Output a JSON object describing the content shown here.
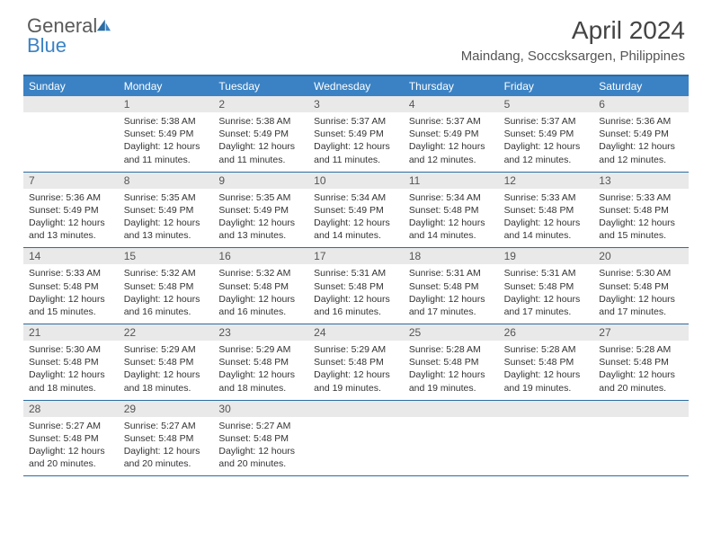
{
  "logo": {
    "word1": "General",
    "word2": "Blue"
  },
  "title": "April 2024",
  "location": "Maindang, Soccsksargen, Philippines",
  "colors": {
    "header_bg": "#3b82c4",
    "border": "#2b6ca3",
    "daynum_bg": "#e9e9e9",
    "text": "#333333"
  },
  "weekdays": [
    "Sunday",
    "Monday",
    "Tuesday",
    "Wednesday",
    "Thursday",
    "Friday",
    "Saturday"
  ],
  "weeks": [
    [
      {
        "n": "",
        "sr": "",
        "ss": "",
        "dl": ""
      },
      {
        "n": "1",
        "sr": "Sunrise: 5:38 AM",
        "ss": "Sunset: 5:49 PM",
        "dl": "Daylight: 12 hours and 11 minutes."
      },
      {
        "n": "2",
        "sr": "Sunrise: 5:38 AM",
        "ss": "Sunset: 5:49 PM",
        "dl": "Daylight: 12 hours and 11 minutes."
      },
      {
        "n": "3",
        "sr": "Sunrise: 5:37 AM",
        "ss": "Sunset: 5:49 PM",
        "dl": "Daylight: 12 hours and 11 minutes."
      },
      {
        "n": "4",
        "sr": "Sunrise: 5:37 AM",
        "ss": "Sunset: 5:49 PM",
        "dl": "Daylight: 12 hours and 12 minutes."
      },
      {
        "n": "5",
        "sr": "Sunrise: 5:37 AM",
        "ss": "Sunset: 5:49 PM",
        "dl": "Daylight: 12 hours and 12 minutes."
      },
      {
        "n": "6",
        "sr": "Sunrise: 5:36 AM",
        "ss": "Sunset: 5:49 PM",
        "dl": "Daylight: 12 hours and 12 minutes."
      }
    ],
    [
      {
        "n": "7",
        "sr": "Sunrise: 5:36 AM",
        "ss": "Sunset: 5:49 PM",
        "dl": "Daylight: 12 hours and 13 minutes."
      },
      {
        "n": "8",
        "sr": "Sunrise: 5:35 AM",
        "ss": "Sunset: 5:49 PM",
        "dl": "Daylight: 12 hours and 13 minutes."
      },
      {
        "n": "9",
        "sr": "Sunrise: 5:35 AM",
        "ss": "Sunset: 5:49 PM",
        "dl": "Daylight: 12 hours and 13 minutes."
      },
      {
        "n": "10",
        "sr": "Sunrise: 5:34 AM",
        "ss": "Sunset: 5:49 PM",
        "dl": "Daylight: 12 hours and 14 minutes."
      },
      {
        "n": "11",
        "sr": "Sunrise: 5:34 AM",
        "ss": "Sunset: 5:48 PM",
        "dl": "Daylight: 12 hours and 14 minutes."
      },
      {
        "n": "12",
        "sr": "Sunrise: 5:33 AM",
        "ss": "Sunset: 5:48 PM",
        "dl": "Daylight: 12 hours and 14 minutes."
      },
      {
        "n": "13",
        "sr": "Sunrise: 5:33 AM",
        "ss": "Sunset: 5:48 PM",
        "dl": "Daylight: 12 hours and 15 minutes."
      }
    ],
    [
      {
        "n": "14",
        "sr": "Sunrise: 5:33 AM",
        "ss": "Sunset: 5:48 PM",
        "dl": "Daylight: 12 hours and 15 minutes."
      },
      {
        "n": "15",
        "sr": "Sunrise: 5:32 AM",
        "ss": "Sunset: 5:48 PM",
        "dl": "Daylight: 12 hours and 16 minutes."
      },
      {
        "n": "16",
        "sr": "Sunrise: 5:32 AM",
        "ss": "Sunset: 5:48 PM",
        "dl": "Daylight: 12 hours and 16 minutes."
      },
      {
        "n": "17",
        "sr": "Sunrise: 5:31 AM",
        "ss": "Sunset: 5:48 PM",
        "dl": "Daylight: 12 hours and 16 minutes."
      },
      {
        "n": "18",
        "sr": "Sunrise: 5:31 AM",
        "ss": "Sunset: 5:48 PM",
        "dl": "Daylight: 12 hours and 17 minutes."
      },
      {
        "n": "19",
        "sr": "Sunrise: 5:31 AM",
        "ss": "Sunset: 5:48 PM",
        "dl": "Daylight: 12 hours and 17 minutes."
      },
      {
        "n": "20",
        "sr": "Sunrise: 5:30 AM",
        "ss": "Sunset: 5:48 PM",
        "dl": "Daylight: 12 hours and 17 minutes."
      }
    ],
    [
      {
        "n": "21",
        "sr": "Sunrise: 5:30 AM",
        "ss": "Sunset: 5:48 PM",
        "dl": "Daylight: 12 hours and 18 minutes."
      },
      {
        "n": "22",
        "sr": "Sunrise: 5:29 AM",
        "ss": "Sunset: 5:48 PM",
        "dl": "Daylight: 12 hours and 18 minutes."
      },
      {
        "n": "23",
        "sr": "Sunrise: 5:29 AM",
        "ss": "Sunset: 5:48 PM",
        "dl": "Daylight: 12 hours and 18 minutes."
      },
      {
        "n": "24",
        "sr": "Sunrise: 5:29 AM",
        "ss": "Sunset: 5:48 PM",
        "dl": "Daylight: 12 hours and 19 minutes."
      },
      {
        "n": "25",
        "sr": "Sunrise: 5:28 AM",
        "ss": "Sunset: 5:48 PM",
        "dl": "Daylight: 12 hours and 19 minutes."
      },
      {
        "n": "26",
        "sr": "Sunrise: 5:28 AM",
        "ss": "Sunset: 5:48 PM",
        "dl": "Daylight: 12 hours and 19 minutes."
      },
      {
        "n": "27",
        "sr": "Sunrise: 5:28 AM",
        "ss": "Sunset: 5:48 PM",
        "dl": "Daylight: 12 hours and 20 minutes."
      }
    ],
    [
      {
        "n": "28",
        "sr": "Sunrise: 5:27 AM",
        "ss": "Sunset: 5:48 PM",
        "dl": "Daylight: 12 hours and 20 minutes."
      },
      {
        "n": "29",
        "sr": "Sunrise: 5:27 AM",
        "ss": "Sunset: 5:48 PM",
        "dl": "Daylight: 12 hours and 20 minutes."
      },
      {
        "n": "30",
        "sr": "Sunrise: 5:27 AM",
        "ss": "Sunset: 5:48 PM",
        "dl": "Daylight: 12 hours and 20 minutes."
      },
      {
        "n": "",
        "sr": "",
        "ss": "",
        "dl": ""
      },
      {
        "n": "",
        "sr": "",
        "ss": "",
        "dl": ""
      },
      {
        "n": "",
        "sr": "",
        "ss": "",
        "dl": ""
      },
      {
        "n": "",
        "sr": "",
        "ss": "",
        "dl": ""
      }
    ]
  ]
}
